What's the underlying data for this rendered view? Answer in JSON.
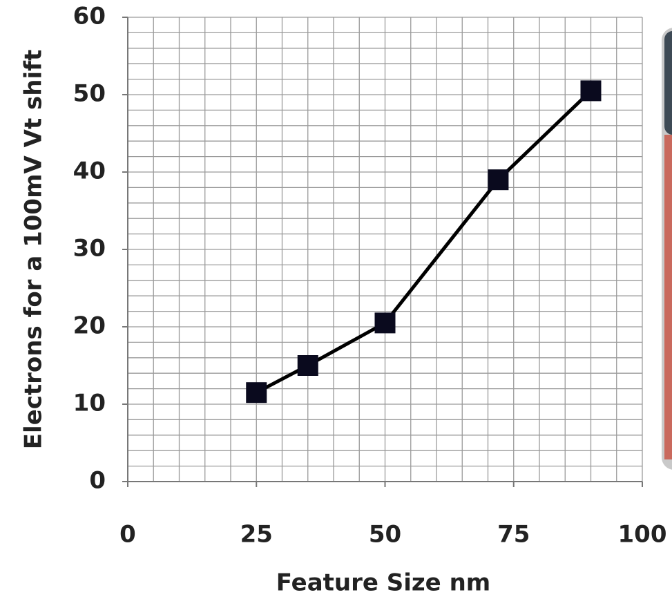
{
  "chart_data": {
    "type": "line",
    "x_label": "Feature Size nm",
    "y_label": "Electrons for a 100mV Vt shift",
    "series": [
      {
        "name": null,
        "color": "#000000",
        "marker_color": "#0a0a1e",
        "x": [
          25,
          35,
          50,
          72,
          90
        ],
        "values": [
          11.5,
          15,
          20.5,
          39,
          50.5
        ]
      }
    ],
    "xlim": [
      0,
      100
    ],
    "xticks": [
      0,
      25,
      50,
      75,
      100
    ],
    "ylim": [
      0,
      60
    ],
    "yticks": [
      0,
      10,
      20,
      30,
      40,
      50,
      60
    ],
    "grid": true,
    "grid_step_x": 5,
    "grid_step_y": 2
  }
}
